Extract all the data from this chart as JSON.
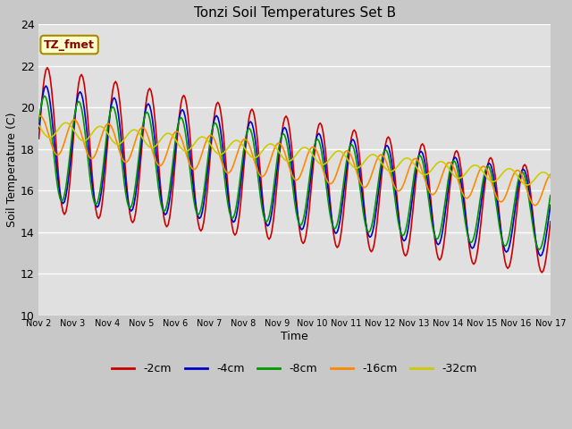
{
  "title": "Tonzi Soil Temperatures Set B",
  "xlabel": "Time",
  "ylabel": "Soil Temperature (C)",
  "ylim": [
    10,
    24
  ],
  "yticks": [
    10,
    12,
    14,
    16,
    18,
    20,
    22,
    24
  ],
  "annotation_text": "TZ_fmet",
  "annotation_color": "#8B0000",
  "annotation_bg": "#FFFFCC",
  "annotation_edge": "#AA8800",
  "fig_bg": "#C8C8C8",
  "plot_bg": "#E0E0E0",
  "grid_color": "#FFFFFF",
  "series_colors": [
    "#CC0000",
    "#0000CC",
    "#009900",
    "#FF8800",
    "#CCCC00"
  ],
  "legend_labels": [
    "-2cm",
    "-4cm",
    "-8cm",
    "-16cm",
    "-32cm"
  ],
  "n_days": 15,
  "pts_per_day": 24,
  "series_params": {
    "trend_starts": [
      18.5,
      18.3,
      18.1,
      18.7,
      19.0
    ],
    "trend_ends": [
      14.5,
      14.8,
      14.9,
      16.0,
      16.5
    ],
    "amp_starts": [
      3.5,
      2.8,
      2.5,
      0.9,
      0.4
    ],
    "amp_ends": [
      2.5,
      2.0,
      1.8,
      0.8,
      0.35
    ],
    "phases": [
      0.0,
      0.25,
      0.5,
      1.3,
      2.8
    ]
  }
}
